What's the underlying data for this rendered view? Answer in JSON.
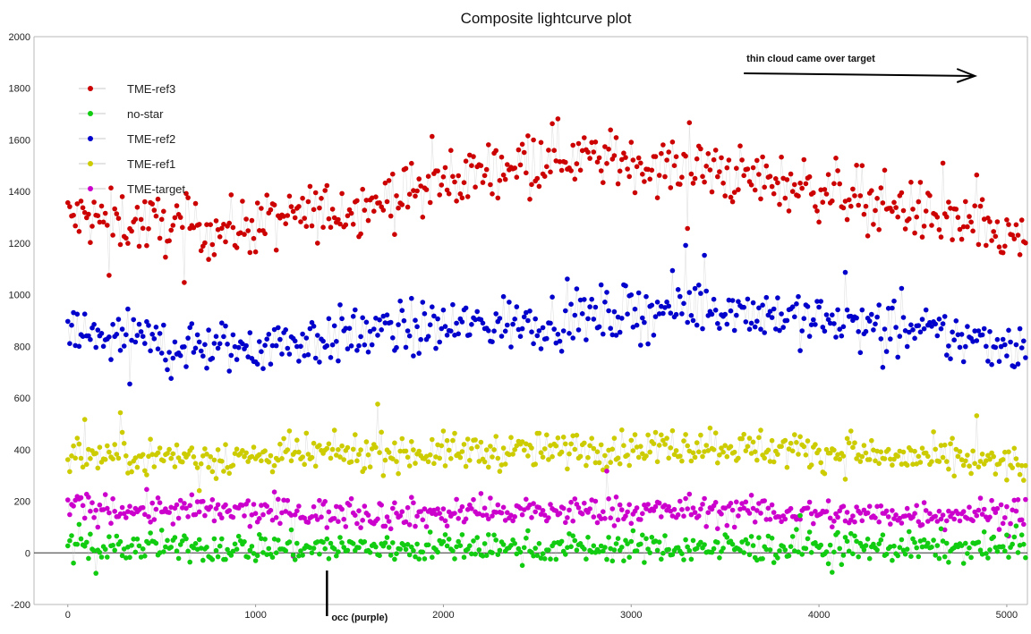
{
  "chart_data": {
    "type": "scatter",
    "title": "Composite lightcurve plot",
    "xlabel": "",
    "ylabel": "",
    "xlim": [
      -180,
      5110
    ],
    "ylim": [
      -200,
      2000
    ],
    "x_ticks": [
      0,
      1000,
      2000,
      3000,
      4000,
      5000
    ],
    "y_ticks": [
      -200,
      0,
      200,
      400,
      600,
      800,
      1000,
      1200,
      1400,
      1600,
      1800,
      2000
    ],
    "grid": false,
    "legend_placement": "upper-left",
    "frame_count": 5100,
    "series": [
      {
        "name": "TME-ref3",
        "color": "#cc0000",
        "baseline": [
          1300,
          1250,
          1370,
          1550,
          1480,
          1380,
          1200
        ],
        "noise": 80
      },
      {
        "name": "no-star",
        "color": "#11cc11",
        "baseline": [
          20,
          20,
          20,
          20,
          20,
          20,
          20
        ],
        "noise": 40
      },
      {
        "name": "TME-ref2",
        "color": "#0000cc",
        "baseline": [
          850,
          790,
          860,
          900,
          960,
          880,
          800
        ],
        "noise": 75
      },
      {
        "name": "TME-ref1",
        "color": "#cccc00",
        "baseline": [
          380,
          370,
          390,
          395,
          420,
          380,
          340
        ],
        "noise": 50
      },
      {
        "name": "TME-target",
        "color": "#cc00cc",
        "baseline": [
          175,
          160,
          150,
          160,
          165,
          145,
          160
        ],
        "noise": 40
      }
    ],
    "annotations": [
      {
        "text": "thin cloud came over target",
        "x_start": 3600,
        "x_end": 4830,
        "y": 1800
      },
      {
        "text": "occ (purple)",
        "x": 1380,
        "y": -200
      }
    ]
  }
}
